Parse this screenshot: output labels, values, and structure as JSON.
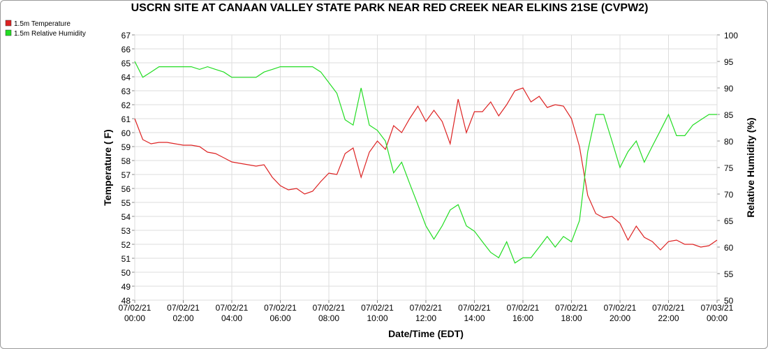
{
  "chart_data": {
    "type": "line",
    "title": "USCRN SITE AT CANAAN VALLEY STATE PARK NEAR RED CREEK NEAR ELKINS 21SE (CVPW2)",
    "x_label": "Date/Time (EDT)",
    "y_label": "Temperature ( F)",
    "y2_label": "Relative Humidity (%)",
    "x": [
      0,
      0.33,
      0.67,
      1,
      1.33,
      1.67,
      2,
      2.33,
      2.67,
      3,
      3.33,
      3.67,
      4,
      4.33,
      4.67,
      5,
      5.33,
      5.67,
      6,
      6.33,
      6.67,
      7,
      7.33,
      7.67,
      8,
      8.33,
      8.67,
      9,
      9.33,
      9.67,
      10,
      10.33,
      10.67,
      11,
      11.33,
      11.67,
      12,
      12.33,
      12.67,
      13,
      13.33,
      13.67,
      14,
      14.33,
      14.67,
      15,
      15.33,
      15.67,
      16,
      16.33,
      16.67,
      17,
      17.33,
      17.67,
      18,
      18.33,
      18.67,
      19,
      19.33,
      19.67,
      20,
      20.33,
      20.67,
      21,
      21.33,
      21.67,
      22,
      22.33,
      22.67,
      23,
      23.33,
      23.67,
      24
    ],
    "series": [
      {
        "name": "1.5m Temperature",
        "color": "#dd2222",
        "axis": "y",
        "values": [
          61.0,
          59.5,
          59.2,
          59.3,
          59.3,
          59.2,
          59.1,
          59.1,
          59.0,
          58.6,
          58.5,
          58.2,
          57.9,
          57.8,
          57.7,
          57.6,
          57.7,
          56.8,
          56.2,
          55.9,
          56.0,
          55.6,
          55.8,
          56.5,
          57.1,
          57.0,
          58.5,
          58.9,
          56.8,
          58.6,
          59.4,
          58.8,
          60.5,
          60.0,
          61.0,
          61.9,
          60.8,
          61.6,
          60.8,
          59.2,
          62.4,
          60.0,
          61.5,
          61.5,
          62.2,
          61.2,
          62.0,
          63.0,
          63.2,
          62.2,
          62.6,
          61.8,
          62.0,
          61.9,
          61.0,
          59.0,
          55.5,
          54.2,
          53.9,
          54.0,
          53.5,
          52.3,
          53.3,
          52.5,
          52.2,
          51.6,
          52.2,
          52.3,
          52.0,
          52.0,
          51.8,
          51.9,
          52.3
        ]
      },
      {
        "name": "1.5m Relative Humidity",
        "color": "#22dd22",
        "axis": "y2",
        "values": [
          95,
          92,
          93,
          94,
          94,
          94,
          94,
          94,
          93.5,
          94,
          93.5,
          93,
          92,
          92,
          92,
          92,
          93,
          93.5,
          94,
          94,
          94,
          94,
          94,
          93,
          91,
          89,
          84,
          83,
          90,
          83,
          82,
          80,
          74,
          76,
          72,
          68,
          64,
          61.5,
          64,
          67,
          68,
          64,
          63,
          61,
          59,
          58,
          61,
          57,
          58,
          58,
          60,
          62,
          60,
          62,
          61,
          65,
          78,
          85,
          85,
          80,
          75,
          78,
          80,
          76,
          79,
          82,
          85,
          81,
          81,
          83,
          84,
          85,
          85
        ]
      }
    ],
    "xlim": [
      0,
      24
    ],
    "xticks": [
      {
        "value": 0,
        "label": "07/02/21 00:00"
      },
      {
        "value": 2,
        "label": "07/02/21 02:00"
      },
      {
        "value": 4,
        "label": "07/02/21 04:00"
      },
      {
        "value": 6,
        "label": "07/02/21 06:00"
      },
      {
        "value": 8,
        "label": "07/02/21 08:00"
      },
      {
        "value": 10,
        "label": "07/02/21 10:00"
      },
      {
        "value": 12,
        "label": "07/02/21 12:00"
      },
      {
        "value": 14,
        "label": "07/02/21 14:00"
      },
      {
        "value": 16,
        "label": "07/02/21 16:00"
      },
      {
        "value": 18,
        "label": "07/02/21 18:00"
      },
      {
        "value": 20,
        "label": "07/02/21 20:00"
      },
      {
        "value": 22,
        "label": "07/02/21 22:00"
      },
      {
        "value": 24,
        "label": "07/03/21 00:00"
      }
    ],
    "ylim": [
      48,
      67
    ],
    "yticks": [
      48,
      49,
      50,
      51,
      52,
      53,
      54,
      55,
      56,
      57,
      58,
      59,
      60,
      61,
      62,
      63,
      64,
      65,
      66,
      67
    ],
    "y2lim": [
      50,
      100
    ],
    "y2ticks": [
      50,
      55,
      60,
      65,
      70,
      75,
      80,
      85,
      90,
      95,
      100
    ],
    "grid": true
  }
}
